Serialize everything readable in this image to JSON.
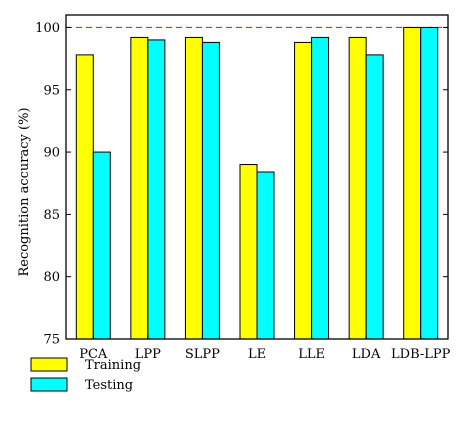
{
  "chart_data": {
    "type": "bar",
    "title": "",
    "xlabel": "",
    "ylabel": "Recognition accuracy (%)",
    "categories": [
      "PCA",
      "LPP",
      "SLPP",
      "LE",
      "LLE",
      "LDA",
      "LDB-LPP"
    ],
    "ylim": [
      75,
      101
    ],
    "yticks": [
      75,
      80,
      85,
      90,
      95,
      100
    ],
    "series": [
      {
        "name": "Training",
        "color": "#ffff00",
        "values": [
          97.8,
          99.2,
          99.2,
          89.0,
          98.8,
          99.2,
          100.0
        ]
      },
      {
        "name": "Testing",
        "color": "#00ffff",
        "values": [
          90.0,
          99.0,
          98.8,
          88.4,
          99.2,
          97.8,
          100.0
        ]
      }
    ],
    "reference_line": {
      "value": 100,
      "color": "#cc3333",
      "style": "dashed"
    },
    "grid": false,
    "legend_position": "bottom-left"
  }
}
